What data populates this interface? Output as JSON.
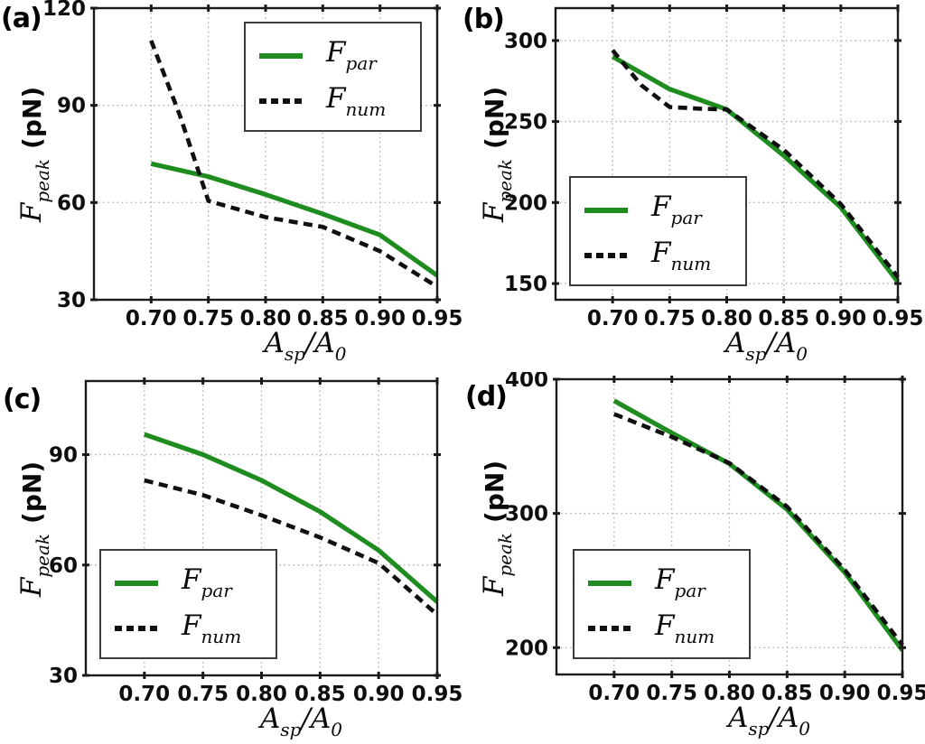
{
  "figure": {
    "background": "#ffffff",
    "colors": {
      "par_line": "#1e8c1e",
      "num_line": "#101010",
      "grid": "#b0b0b0",
      "frame": "#1b1b1b",
      "tick_label": "#0e0e0e",
      "legend_border": "#3c3c3c"
    },
    "ylabel": {
      "main": "F",
      "sub": "peak",
      "unit": "(pN)",
      "text": "F_peak (pN)"
    },
    "xlabel": {
      "A1": "A",
      "sub1": "sp",
      "slash": "/",
      "A2": "A",
      "sub2": "0",
      "text": "A_sp/A_0"
    },
    "legend": {
      "entries": [
        {
          "main": "F",
          "sub": "par",
          "text": "F_par"
        },
        {
          "main": "F",
          "sub": "num",
          "text": "F_num"
        }
      ]
    }
  },
  "chart_data": [
    {
      "type": "line",
      "panel": "(a)",
      "xlabel": "A_sp/A_0",
      "ylabel": "F_peak (pN)",
      "xlim": [
        0.65,
        0.95
      ],
      "ylim": [
        30,
        120
      ],
      "xticks": [
        0.7,
        0.75,
        0.8,
        0.85,
        0.9,
        0.95
      ],
      "xtick_labels": [
        "0.70",
        "0.75",
        "0.80",
        "0.85",
        "0.90",
        "0.95"
      ],
      "yticks": [
        30,
        60,
        90,
        120
      ],
      "ytick_labels": [
        "30",
        "60",
        "90",
        "120"
      ],
      "grid": true,
      "legend_position": "upper right",
      "series": [
        {
          "name": "F_par",
          "color": "#1e8c1e",
          "dash": "solid",
          "width": 5.2,
          "x": [
            0.7,
            0.75,
            0.8,
            0.85,
            0.9,
            0.95
          ],
          "values": [
            72,
            68,
            62.5,
            56.5,
            50,
            37.5
          ]
        },
        {
          "name": "F_num",
          "color": "#101010",
          "dash": "dashed",
          "width": 4.6,
          "x": [
            0.7,
            0.725,
            0.75,
            0.8,
            0.85,
            0.9,
            0.95
          ],
          "values": [
            110,
            87,
            60.5,
            55.5,
            52.5,
            45,
            34
          ]
        }
      ]
    },
    {
      "type": "line",
      "panel": "(b)",
      "xlabel": "A_sp/A_0",
      "ylabel": "F_peak (pN)",
      "xlim": [
        0.65,
        0.95
      ],
      "ylim": [
        140,
        320
      ],
      "xticks": [
        0.7,
        0.75,
        0.8,
        0.85,
        0.9,
        0.95
      ],
      "xtick_labels": [
        "0.70",
        "0.75",
        "0.80",
        "0.85",
        "0.90",
        "0.95"
      ],
      "yticks": [
        150,
        200,
        250,
        300
      ],
      "ytick_labels": [
        "150",
        "200",
        "250",
        "300"
      ],
      "grid": true,
      "legend_position": "lower left",
      "series": [
        {
          "name": "F_par",
          "color": "#1e8c1e",
          "dash": "solid",
          "width": 5.2,
          "x": [
            0.7,
            0.75,
            0.8,
            0.85,
            0.9,
            0.95
          ],
          "values": [
            290,
            270,
            257.5,
            229,
            197,
            151
          ]
        },
        {
          "name": "F_num",
          "color": "#101010",
          "dash": "dashed",
          "width": 4.6,
          "x": [
            0.7,
            0.725,
            0.75,
            0.775,
            0.8,
            0.85,
            0.9,
            0.95
          ],
          "values": [
            294,
            272.5,
            259,
            258,
            257.5,
            232.5,
            199,
            154
          ]
        }
      ]
    },
    {
      "type": "line",
      "panel": "(c)",
      "xlabel": "A_sp/A_0",
      "ylabel": "F_peak (pN)",
      "xlim": [
        0.65,
        0.95
      ],
      "ylim": [
        30,
        110
      ],
      "xticks": [
        0.7,
        0.75,
        0.8,
        0.85,
        0.9,
        0.95
      ],
      "xtick_labels": [
        "0.70",
        "0.75",
        "0.80",
        "0.85",
        "0.90",
        "0.95"
      ],
      "yticks": [
        30,
        60,
        90
      ],
      "ytick_labels": [
        "30",
        "60",
        "90"
      ],
      "grid": true,
      "legend_position": "lower left",
      "series": [
        {
          "name": "F_par",
          "color": "#1e8c1e",
          "dash": "solid",
          "width": 5.2,
          "x": [
            0.7,
            0.75,
            0.8,
            0.85,
            0.9,
            0.95
          ],
          "values": [
            95.5,
            90,
            83,
            74.5,
            64,
            50
          ]
        },
        {
          "name": "F_num",
          "color": "#101010",
          "dash": "dashed",
          "width": 4.6,
          "x": [
            0.7,
            0.75,
            0.8,
            0.85,
            0.9,
            0.95
          ],
          "values": [
            83,
            79,
            73.5,
            67.5,
            60.5,
            46.5
          ]
        }
      ]
    },
    {
      "type": "line",
      "panel": "(d)",
      "xlabel": "A_sp/A_0",
      "ylabel": "F_peak (pN)",
      "xlim": [
        0.65,
        0.95
      ],
      "ylim": [
        180,
        400
      ],
      "xticks": [
        0.7,
        0.75,
        0.8,
        0.85,
        0.9,
        0.95
      ],
      "xtick_labels": [
        "0.70",
        "0.75",
        "0.80",
        "0.85",
        "0.90",
        "0.95"
      ],
      "yticks": [
        200,
        300,
        400
      ],
      "ytick_labels": [
        "200",
        "300",
        "400"
      ],
      "grid": true,
      "legend_position": "lower left",
      "series": [
        {
          "name": "F_par",
          "color": "#1e8c1e",
          "dash": "solid",
          "width": 5.2,
          "x": [
            0.7,
            0.75,
            0.8,
            0.85,
            0.9,
            0.95
          ],
          "values": [
            384,
            360,
            337,
            303,
            256,
            198
          ]
        },
        {
          "name": "F_num",
          "color": "#101010",
          "dash": "dashed",
          "width": 4.6,
          "x": [
            0.7,
            0.75,
            0.8,
            0.85,
            0.9,
            0.95
          ],
          "values": [
            374,
            357,
            337.5,
            305,
            258,
            202
          ]
        }
      ]
    }
  ]
}
